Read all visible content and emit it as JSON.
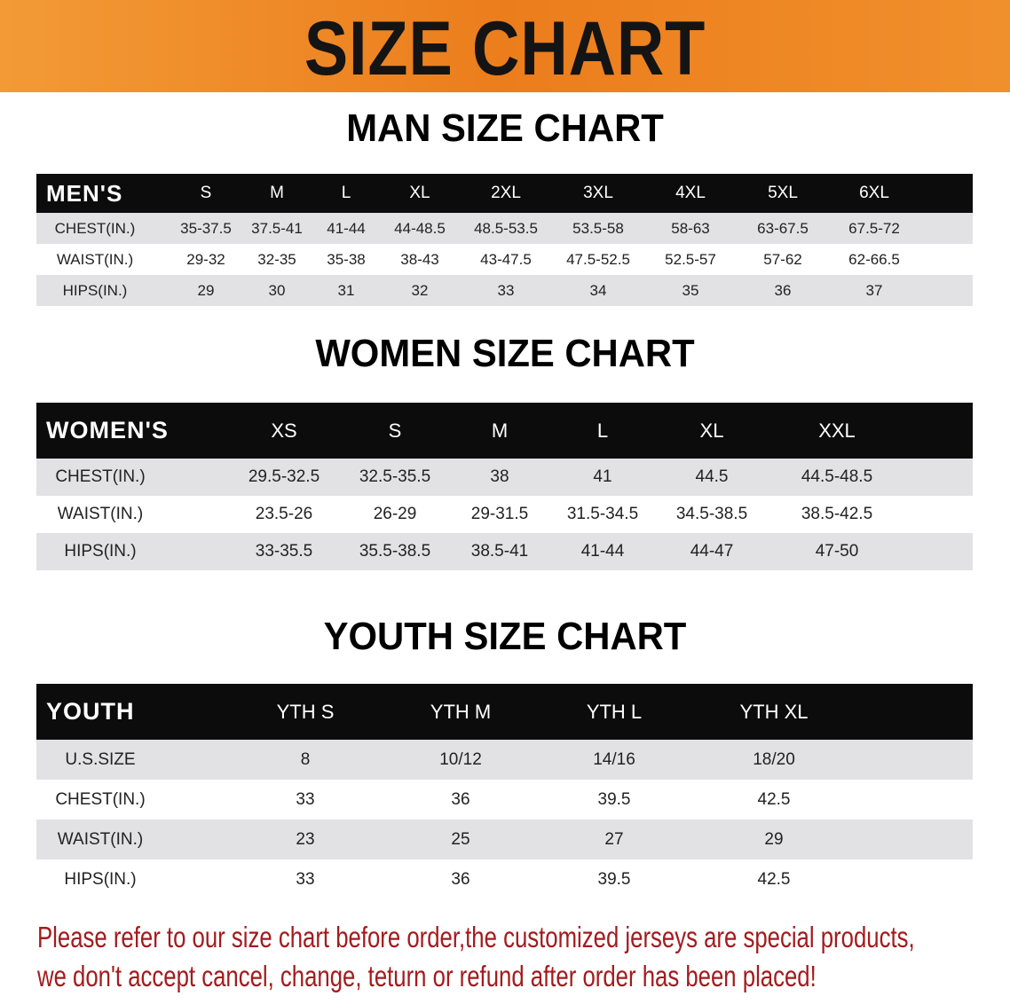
{
  "title": "SIZE CHART",
  "colors": {
    "banner": "#ec7d1c",
    "header_row": "#0c0c0c",
    "stripe": "#e2e2e4",
    "note": "#a31b1e"
  },
  "men": {
    "title": "MAN SIZE CHART",
    "header": [
      "MEN'S",
      "S",
      "M",
      "L",
      "XL",
      "2XL",
      "3XL",
      "4XL",
      "5XL",
      "6XL"
    ],
    "rows": [
      [
        "CHEST(IN.)",
        "35-37.5",
        "37.5-41",
        "41-44",
        "44-48.5",
        "48.5-53.5",
        "53.5-58",
        "58-63",
        "63-67.5",
        "67.5-72"
      ],
      [
        "WAIST(IN.)",
        "29-32",
        "32-35",
        "35-38",
        "38-43",
        "43-47.5",
        "47.5-52.5",
        "52.5-57",
        "57-62",
        "62-66.5"
      ],
      [
        "HIPS(IN.)",
        "29",
        "30",
        "31",
        "32",
        "33",
        "34",
        "35",
        "36",
        "37"
      ]
    ]
  },
  "women": {
    "title": "WOMEN SIZE CHART",
    "header": [
      "WOMEN'S",
      "XS",
      "S",
      "M",
      "L",
      "XL",
      "XXL"
    ],
    "rows": [
      [
        "CHEST(IN.)",
        "29.5-32.5",
        "32.5-35.5",
        "38",
        "41",
        "44.5",
        "44.5-48.5"
      ],
      [
        "WAIST(IN.)",
        "23.5-26",
        "26-29",
        "29-31.5",
        "31.5-34.5",
        "34.5-38.5",
        "38.5-42.5"
      ],
      [
        "HIPS(IN.)",
        "33-35.5",
        "35.5-38.5",
        "38.5-41",
        "41-44",
        "44-47",
        "47-50"
      ]
    ]
  },
  "youth": {
    "title": "YOUTH SIZE CHART",
    "header": [
      "YOUTH",
      "YTH S",
      "YTH M",
      "YTH L",
      "YTH XL"
    ],
    "rows": [
      [
        "U.S.SIZE",
        "8",
        "10/12",
        "14/16",
        "18/20"
      ],
      [
        "CHEST(IN.)",
        "33",
        "36",
        "39.5",
        "42.5"
      ],
      [
        "WAIST(IN.)",
        "23",
        "25",
        "27",
        "29"
      ],
      [
        "HIPS(IN.)",
        "33",
        "36",
        "39.5",
        "42.5"
      ]
    ]
  },
  "notes": [
    "Please refer to our size chart before order,the customized jerseys are special products,",
    "we don't accept cancel, change, teturn or refund after order has been placed!"
  ]
}
